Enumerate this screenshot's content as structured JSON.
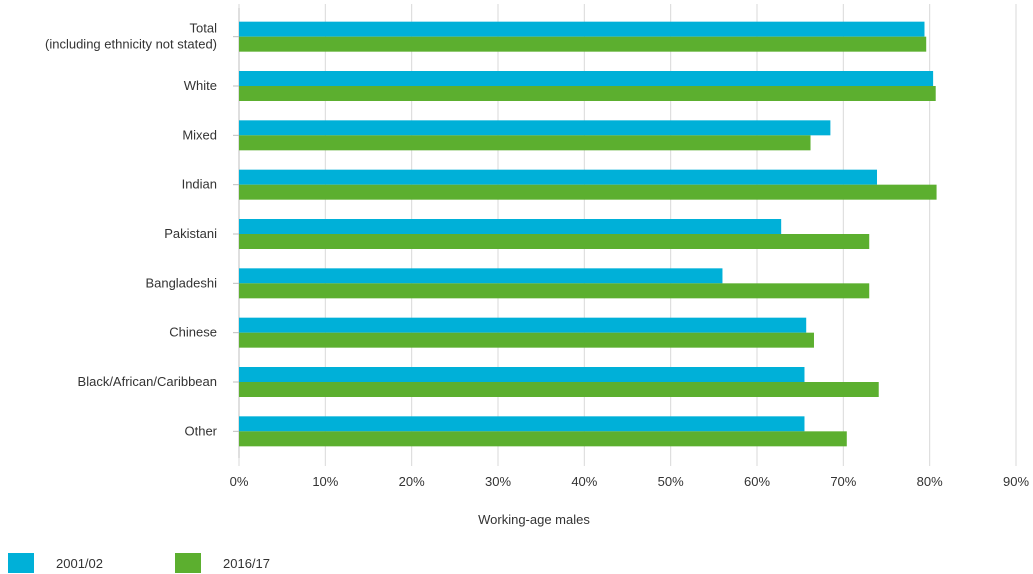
{
  "chart_data": {
    "type": "bar",
    "orientation": "horizontal",
    "categories": [
      [
        "Total",
        "(including ethnicity not stated)"
      ],
      [
        "White"
      ],
      [
        "Mixed"
      ],
      [
        "Indian"
      ],
      [
        "Pakistani"
      ],
      [
        "Bangladeshi"
      ],
      [
        "Chinese"
      ],
      [
        "Black/African/Caribbean"
      ],
      [
        "Other"
      ]
    ],
    "series": [
      {
        "name": "2001/02",
        "color": "#00b0d8",
        "values": [
          79.4,
          80.4,
          68.5,
          73.9,
          62.8,
          56.0,
          65.7,
          65.5,
          65.5
        ]
      },
      {
        "name": "2016/17",
        "color": "#5caf2f",
        "values": [
          79.6,
          80.7,
          66.2,
          80.8,
          73.0,
          73.0,
          66.6,
          74.1,
          70.4
        ]
      }
    ],
    "xlabel": "Working-age males",
    "xlim": [
      0,
      90
    ],
    "xticks": [
      0,
      10,
      20,
      30,
      40,
      50,
      60,
      70,
      80,
      90
    ],
    "xtick_labels": [
      "0%",
      "10%",
      "20%",
      "30%",
      "40%",
      "50%",
      "60%",
      "70%",
      "80%",
      "90%"
    ],
    "grid": true,
    "legend_position": "bottom-left"
  },
  "legend": {
    "series_1_label": "2001/02",
    "series_2_label": "2016/17",
    "series_1_color": "#00b0d8",
    "series_2_color": "#5caf2f"
  }
}
